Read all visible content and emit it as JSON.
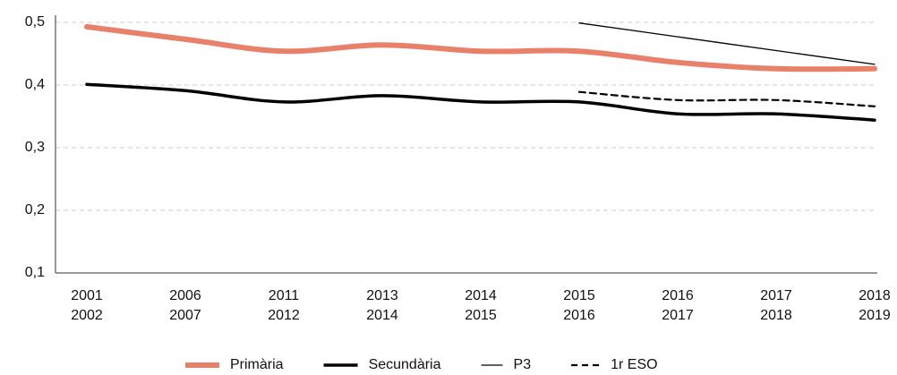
{
  "chart_data": {
    "type": "line",
    "categories": [
      [
        "2001",
        "2002"
      ],
      [
        "2006",
        "2007"
      ],
      [
        "2011",
        "2012"
      ],
      [
        "2013",
        "2014"
      ],
      [
        "2014",
        "2015"
      ],
      [
        "2015",
        "2016"
      ],
      [
        "2016",
        "2017"
      ],
      [
        "2017",
        "2018"
      ],
      [
        "2018",
        "2019"
      ]
    ],
    "series": [
      {
        "name": "Primària",
        "color": "#e8806a",
        "style": "thick",
        "values": [
          0.493,
          0.473,
          0.454,
          0.464,
          0.454,
          0.454,
          0.436,
          0.426,
          0.426
        ]
      },
      {
        "name": "Secundària",
        "color": "#000000",
        "style": "solid",
        "values": [
          0.401,
          0.391,
          0.373,
          0.383,
          0.373,
          0.373,
          0.354,
          0.354,
          0.344
        ]
      },
      {
        "name": "P3",
        "color": "#000000",
        "style": "thin",
        "values": [
          null,
          null,
          null,
          null,
          null,
          0.499,
          0.477,
          0.455,
          0.433
        ]
      },
      {
        "name": "1r ESO",
        "color": "#000000",
        "style": "dashed",
        "values": [
          null,
          null,
          null,
          null,
          null,
          0.389,
          0.376,
          0.376,
          0.366
        ]
      }
    ],
    "ylim": [
      0.1,
      0.5
    ],
    "yticks": [
      {
        "value": 0.1,
        "label": "0,1"
      },
      {
        "value": 0.2,
        "label": "0,2"
      },
      {
        "value": 0.3,
        "label": "0,3"
      },
      {
        "value": 0.4,
        "label": "0,4"
      },
      {
        "value": 0.5,
        "label": "0,5"
      }
    ],
    "grid": true,
    "legend": "bottom"
  }
}
